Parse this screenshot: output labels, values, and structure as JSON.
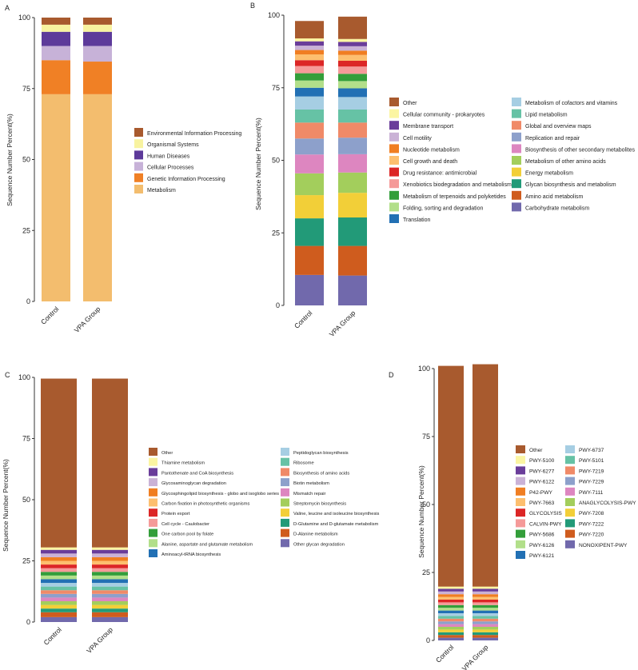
{
  "chart_data": [
    {
      "panel": "A",
      "type": "bar",
      "stacked": true,
      "categories": [
        "Control",
        "VPA Group"
      ],
      "ylabel": "Sequence Number Percent(%)",
      "ylim": [
        0,
        100
      ],
      "yticks": [
        0,
        25,
        50,
        75,
        100
      ],
      "series": [
        {
          "name": "Metabolism",
          "color": "#f3bd6e",
          "values": [
            73.0,
            73.0
          ]
        },
        {
          "name": "Genetic Information Processing",
          "color": "#f08025",
          "values": [
            12.0,
            11.5
          ]
        },
        {
          "name": "Cellular Processes",
          "color": "#c7b2d8",
          "values": [
            5.0,
            5.5
          ]
        },
        {
          "name": "Human Diseases",
          "color": "#5d3a9a",
          "values": [
            5.0,
            5.0
          ]
        },
        {
          "name": "Organismal Systems",
          "color": "#f8f3a0",
          "values": [
            2.5,
            2.5
          ]
        },
        {
          "name": "Environmental Information Processing",
          "color": "#a85a2e",
          "values": [
            2.5,
            2.5
          ]
        }
      ],
      "legend": {
        "position": "right",
        "columns": 1
      }
    },
    {
      "panel": "B",
      "type": "bar",
      "stacked": true,
      "categories": [
        "Control",
        "VPA Group"
      ],
      "ylabel": "Sequence Number Percent(%)",
      "ylim": [
        0,
        100
      ],
      "yticks": [
        0,
        25,
        50,
        75,
        100
      ],
      "series": [
        {
          "name": "Carbohydrate metabolism",
          "color": "#7169ac",
          "values": [
            10.5,
            10.3
          ]
        },
        {
          "name": "Amino acid metabolism",
          "color": "#cf5c1e",
          "values": [
            10.0,
            10.2
          ]
        },
        {
          "name": "Glycan biosynthesis and metabolism",
          "color": "#229a78",
          "values": [
            9.5,
            9.8
          ]
        },
        {
          "name": "Energy metabolism",
          "color": "#f2cf38",
          "values": [
            8.0,
            8.5
          ]
        },
        {
          "name": "Metabolism of other amino acids",
          "color": "#a3ce5c",
          "values": [
            7.5,
            7.0
          ]
        },
        {
          "name": "Biosynthesis of other secondary metabolites",
          "color": "#dd86c0",
          "values": [
            6.5,
            6.3
          ]
        },
        {
          "name": "Replication and repair",
          "color": "#8da0cb",
          "values": [
            5.5,
            5.7
          ]
        },
        {
          "name": "Global and overview maps",
          "color": "#f08a68",
          "values": [
            5.5,
            5.2
          ]
        },
        {
          "name": "Lipid metabolism",
          "color": "#66c2a5",
          "values": [
            4.5,
            4.5
          ]
        },
        {
          "name": "Metabolism of cofactors and vitamins",
          "color": "#a6cee3",
          "values": [
            4.5,
            4.3
          ]
        },
        {
          "name": "Translation",
          "color": "#2270b4",
          "values": [
            3.0,
            3.0
          ]
        },
        {
          "name": "Folding, sorting and degradation",
          "color": "#b2df8a",
          "values": [
            2.5,
            2.5
          ]
        },
        {
          "name": "Metabolism of terpenoids and polyketides",
          "color": "#339e3a",
          "values": [
            2.5,
            2.5
          ]
        },
        {
          "name": "Xenobiotics biodegradation and metabolism",
          "color": "#f59a99",
          "values": [
            2.5,
            2.5
          ]
        },
        {
          "name": "Drug resistance: antimicrobial",
          "color": "#dc2626",
          "values": [
            2.0,
            2.0
          ]
        },
        {
          "name": "Cell growth and death",
          "color": "#fdbf6f",
          "values": [
            2.0,
            2.0
          ]
        },
        {
          "name": "Nucleotide metabolism",
          "color": "#f07e22",
          "values": [
            1.5,
            1.5
          ]
        },
        {
          "name": "Cell motility",
          "color": "#cab2d6",
          "values": [
            1.5,
            1.5
          ]
        },
        {
          "name": "Membrane transport",
          "color": "#6a3d9a",
          "values": [
            1.5,
            1.5
          ]
        },
        {
          "name": "Cellular community - prokaryotes",
          "color": "#fbf5a2",
          "values": [
            1.0,
            1.0
          ]
        },
        {
          "name": "Other",
          "color": "#a85a2e",
          "values": [
            6.0,
            7.7
          ]
        }
      ],
      "legend": {
        "position": "right",
        "columns": 2
      }
    },
    {
      "panel": "C",
      "type": "bar",
      "stacked": true,
      "categories": [
        "Control",
        "VPA Group"
      ],
      "ylabel": "Sequence Number Percent(%)",
      "ylim": [
        0,
        100
      ],
      "yticks": [
        0,
        25,
        50,
        75,
        100
      ],
      "series": [
        {
          "name": "Other glycan degradation",
          "color": "#7169ac",
          "values": [
            2.0,
            2.0
          ]
        },
        {
          "name": "D-Alanine metabolism",
          "color": "#cf5c1e",
          "values": [
            2.0,
            2.0
          ]
        },
        {
          "name": "D-Glutamine and D-glutamate metabolism",
          "color": "#229a78",
          "values": [
            1.5,
            1.5
          ]
        },
        {
          "name": "Valine, leucine and isoleucine biosynthesis",
          "color": "#f2cf38",
          "values": [
            1.5,
            1.5
          ]
        },
        {
          "name": "Streptomycin biosynthesis",
          "color": "#a3ce5c",
          "values": [
            1.5,
            1.5
          ]
        },
        {
          "name": "Mismatch repair",
          "color": "#dd86c0",
          "values": [
            1.5,
            1.5
          ]
        },
        {
          "name": "Biotin metabolism",
          "color": "#8da0cb",
          "values": [
            1.5,
            1.5
          ]
        },
        {
          "name": "Biosynthesis of amino acids",
          "color": "#f08a68",
          "values": [
            1.5,
            1.5
          ]
        },
        {
          "name": "Ribosome",
          "color": "#66c2a5",
          "values": [
            1.5,
            1.5
          ]
        },
        {
          "name": "Peptidoglycan biosynthesis",
          "color": "#a6cee3",
          "values": [
            1.5,
            1.5
          ]
        },
        {
          "name": "Aminoacyl-tRNA biosynthesis",
          "color": "#2270b4",
          "values": [
            1.5,
            1.5
          ]
        },
        {
          "name": "Alanine, aspartate and glutamate metabolism",
          "color": "#b2df8a",
          "values": [
            1.5,
            1.5
          ]
        },
        {
          "name": "One carbon pool by folate",
          "color": "#339e3a",
          "values": [
            1.5,
            1.5
          ]
        },
        {
          "name": "Cell cycle - Caulobacter",
          "color": "#f59a99",
          "values": [
            1.5,
            1.5
          ]
        },
        {
          "name": "Protein export",
          "color": "#dc2626",
          "values": [
            1.5,
            1.5
          ]
        },
        {
          "name": "Carbon fixation in photosynthetic organisms",
          "color": "#fdbf6f",
          "values": [
            1.5,
            1.5
          ]
        },
        {
          "name": "Glycosphingolipid biosynthesis - globo and isoglobo series",
          "color": "#f07e22",
          "values": [
            1.5,
            1.5
          ]
        },
        {
          "name": "Glycosaminoglycan degradation",
          "color": "#cab2d6",
          "values": [
            1.5,
            1.5
          ]
        },
        {
          "name": "Pantothenate and CoA biosynthesis",
          "color": "#6a3d9a",
          "values": [
            1.5,
            1.5
          ]
        },
        {
          "name": "Thiamine metabolism",
          "color": "#fbf5a2",
          "values": [
            1.0,
            1.0
          ]
        },
        {
          "name": "Other",
          "color": "#a85a2e",
          "values": [
            69.0,
            69.0
          ]
        }
      ],
      "legend": {
        "position": "right",
        "columns": 2
      }
    },
    {
      "panel": "D",
      "type": "bar",
      "stacked": true,
      "categories": [
        "Control",
        "VPA Group"
      ],
      "ylabel": "Sequence Number Percent(%)",
      "ylim": [
        0,
        100
      ],
      "yticks": [
        0,
        25,
        50,
        75,
        100
      ],
      "series": [
        {
          "name": "NONOXIPENT-PWY",
          "color": "#7169ac",
          "values": [
            1.0,
            1.0
          ]
        },
        {
          "name": "PWY-7220",
          "color": "#cf5c1e",
          "values": [
            1.0,
            1.0
          ]
        },
        {
          "name": "PWY-7222",
          "color": "#229a78",
          "values": [
            1.0,
            1.0
          ]
        },
        {
          "name": "PWY-7208",
          "color": "#f2cf38",
          "values": [
            1.0,
            1.0
          ]
        },
        {
          "name": "ANAGLYCOLYSIS-PWY",
          "color": "#a3ce5c",
          "values": [
            1.0,
            1.0
          ]
        },
        {
          "name": "PWY-7111",
          "color": "#dd86c0",
          "values": [
            1.0,
            1.0
          ]
        },
        {
          "name": "PWY-7229",
          "color": "#8da0cb",
          "values": [
            1.0,
            1.0
          ]
        },
        {
          "name": "PWY-7219",
          "color": "#f08a68",
          "values": [
            1.0,
            1.0
          ]
        },
        {
          "name": "PWY-5101",
          "color": "#66c2a5",
          "values": [
            1.0,
            1.0
          ]
        },
        {
          "name": "PWY-6737",
          "color": "#a6cee3",
          "values": [
            1.0,
            1.0
          ]
        },
        {
          "name": "PWY-6121",
          "color": "#2270b4",
          "values": [
            1.0,
            1.0
          ]
        },
        {
          "name": "PWY-6126",
          "color": "#b2df8a",
          "values": [
            1.0,
            1.0
          ]
        },
        {
          "name": "PWY-5686",
          "color": "#339e3a",
          "values": [
            1.0,
            1.0
          ]
        },
        {
          "name": "CALVIN-PWY",
          "color": "#f59a99",
          "values": [
            1.0,
            1.0
          ]
        },
        {
          "name": "GLYCOLYSIS",
          "color": "#dc2626",
          "values": [
            1.0,
            1.0
          ]
        },
        {
          "name": "PWY-7663",
          "color": "#fdbf6f",
          "values": [
            1.0,
            1.0
          ]
        },
        {
          "name": "P42-PWY",
          "color": "#f07e22",
          "values": [
            1.0,
            1.0
          ]
        },
        {
          "name": "PWY-6122",
          "color": "#cab2d6",
          "values": [
            1.0,
            1.0
          ]
        },
        {
          "name": "PWY-6277",
          "color": "#6a3d9a",
          "values": [
            1.0,
            1.0
          ]
        },
        {
          "name": "PWY-5100",
          "color": "#fbf5a2",
          "values": [
            0.8,
            0.8
          ]
        },
        {
          "name": "Other",
          "color": "#a85a2e",
          "values": [
            81.2,
            81.8
          ]
        }
      ],
      "legend": {
        "position": "right",
        "columns": 2
      }
    }
  ]
}
